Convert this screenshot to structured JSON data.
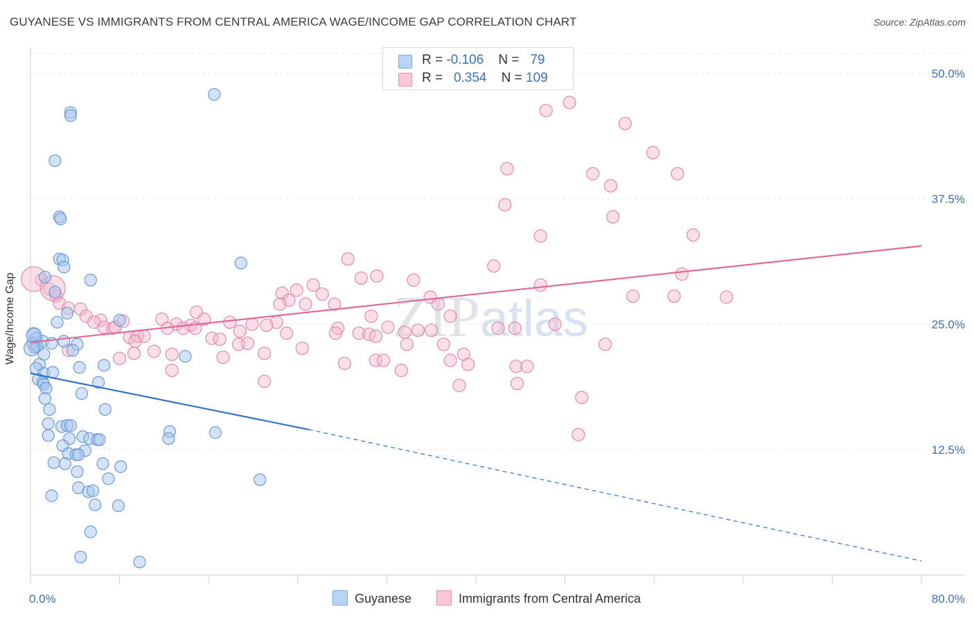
{
  "title": "GUYANESE VS IMMIGRANTS FROM CENTRAL AMERICA WAGE/INCOME GAP CORRELATION CHART",
  "source": "Source: ZipAtlas.com",
  "watermark": "ZIPatlas",
  "legend": {
    "series1": {
      "r_label": "R =",
      "r_value": "-0.106",
      "n_label": "N =",
      "n_value": "79"
    },
    "series2": {
      "r_label": "R =",
      "r_value": "0.354",
      "n_label": "N =",
      "n_value": "109"
    }
  },
  "colors": {
    "guyanese_fill": "#a8c6f0",
    "guyanese_stroke": "#6a9bd8",
    "guyanese_line": "#2f6fd0",
    "central_fill": "#f5b8cb",
    "central_stroke": "#e58aa8",
    "central_line": "#e06a95",
    "axis_text": "#3a6fc4",
    "grid": "#e4e4e4"
  },
  "chart_data": {
    "type": "scatter",
    "title": "GUYANESE VS IMMIGRANTS FROM CENTRAL AMERICA WAGE/INCOME GAP CORRELATION CHART",
    "xlabel": "",
    "ylabel": "Wage/Income Gap",
    "xlim": [
      0,
      80
    ],
    "ylim": [
      0,
      52
    ],
    "x_tick_labels": [
      "0.0%",
      "80.0%"
    ],
    "y_ticks": [
      12.5,
      25.0,
      37.5,
      50.0
    ],
    "y_tick_labels": [
      "12.5%",
      "25.0%",
      "37.5%",
      "50.0%"
    ],
    "grid": true,
    "legend_position": "top-center",
    "series": [
      {
        "name": "Guyanese",
        "r": -0.106,
        "n": 79,
        "trend": {
          "x": [
            0,
            25,
            80
          ],
          "y": [
            20.1,
            14.5,
            1.4
          ],
          "solid_to": 25
        },
        "points": [
          [
            16.5,
            47.9
          ],
          [
            3.6,
            46.1
          ],
          [
            3.6,
            45.8
          ],
          [
            2.2,
            41.3
          ],
          [
            2.6,
            35.7
          ],
          [
            2.7,
            35.5
          ],
          [
            2.6,
            31.5
          ],
          [
            2.9,
            31.4
          ],
          [
            3.0,
            30.7
          ],
          [
            18.9,
            31.1
          ],
          [
            1.3,
            29.7
          ],
          [
            5.4,
            29.4
          ],
          [
            2.2,
            28.2
          ],
          [
            3.3,
            26.1
          ],
          [
            8.0,
            25.4
          ],
          [
            2.4,
            25.2
          ],
          [
            0.3,
            24.0
          ],
          [
            0.5,
            23.6
          ],
          [
            1.1,
            23.3
          ],
          [
            0.2,
            23.1
          ],
          [
            0.4,
            22.7
          ],
          [
            0.6,
            22.8
          ],
          [
            1.9,
            23.1
          ],
          [
            3.0,
            23.3
          ],
          [
            4.2,
            23.0
          ],
          [
            3.8,
            22.4
          ],
          [
            1.2,
            22.0
          ],
          [
            13.9,
            21.8
          ],
          [
            0.8,
            21.0
          ],
          [
            6.6,
            20.9
          ],
          [
            4.4,
            20.7
          ],
          [
            0.5,
            20.6
          ],
          [
            1.2,
            20.1
          ],
          [
            2.0,
            20.2
          ],
          [
            0.7,
            19.5
          ],
          [
            1.1,
            19.2
          ],
          [
            1.2,
            19.0
          ],
          [
            6.1,
            19.2
          ],
          [
            1.4,
            18.6
          ],
          [
            4.6,
            18.1
          ],
          [
            1.3,
            17.6
          ],
          [
            6.7,
            16.5
          ],
          [
            1.7,
            16.5
          ],
          [
            1.6,
            15.1
          ],
          [
            2.8,
            14.8
          ],
          [
            3.3,
            14.9
          ],
          [
            3.6,
            14.9
          ],
          [
            12.5,
            14.3
          ],
          [
            16.6,
            14.2
          ],
          [
            1.6,
            13.9
          ],
          [
            4.7,
            13.8
          ],
          [
            3.5,
            13.6
          ],
          [
            5.3,
            13.6
          ],
          [
            6.0,
            13.5
          ],
          [
            12.4,
            13.6
          ],
          [
            6.2,
            13.5
          ],
          [
            2.9,
            12.9
          ],
          [
            4.9,
            12.4
          ],
          [
            3.4,
            12.1
          ],
          [
            4.1,
            12.0
          ],
          [
            4.3,
            12.0
          ],
          [
            6.5,
            11.1
          ],
          [
            2.1,
            11.2
          ],
          [
            3.1,
            11.1
          ],
          [
            8.1,
            10.8
          ],
          [
            4.2,
            10.3
          ],
          [
            20.6,
            9.5
          ],
          [
            7.0,
            9.6
          ],
          [
            4.3,
            8.7
          ],
          [
            5.2,
            8.3
          ],
          [
            5.6,
            8.4
          ],
          [
            1.9,
            7.9
          ],
          [
            5.8,
            7.0
          ],
          [
            7.9,
            6.9
          ],
          [
            5.4,
            4.3
          ],
          [
            4.5,
            1.8
          ],
          [
            9.8,
            1.3
          ],
          [
            0.1,
            22.6
          ],
          [
            0.3,
            23.9
          ]
        ]
      },
      {
        "name": "Immigrants from Central America",
        "r": 0.354,
        "n": 109,
        "trend": {
          "x": [
            0,
            80
          ],
          "y": [
            23.2,
            32.8
          ]
        },
        "points": [
          [
            48.4,
            47.1
          ],
          [
            46.3,
            46.3
          ],
          [
            53.4,
            45.0
          ],
          [
            55.9,
            42.1
          ],
          [
            42.8,
            40.5
          ],
          [
            50.5,
            40.0
          ],
          [
            58.1,
            40.0
          ],
          [
            52.1,
            38.8
          ],
          [
            42.6,
            36.9
          ],
          [
            52.3,
            35.7
          ],
          [
            45.8,
            33.8
          ],
          [
            59.5,
            33.9
          ],
          [
            28.5,
            31.5
          ],
          [
            41.6,
            30.8
          ],
          [
            29.7,
            29.6
          ],
          [
            31.1,
            29.8
          ],
          [
            34.4,
            29.4
          ],
          [
            58.5,
            30.0
          ],
          [
            45.8,
            28.9
          ],
          [
            25.4,
            28.9
          ],
          [
            23.9,
            28.4
          ],
          [
            22.6,
            28.1
          ],
          [
            26.2,
            28.0
          ],
          [
            54.1,
            27.8
          ],
          [
            57.8,
            27.8
          ],
          [
            62.5,
            27.7
          ],
          [
            35.9,
            27.7
          ],
          [
            23.2,
            27.4
          ],
          [
            24.7,
            27.0
          ],
          [
            22.4,
            27.0
          ],
          [
            36.6,
            27.0
          ],
          [
            27.3,
            27.0
          ],
          [
            1.0,
            29.4
          ],
          [
            1.7,
            28.5
          ],
          [
            2.3,
            27.8
          ],
          [
            2.6,
            27.1
          ],
          [
            3.4,
            26.6
          ],
          [
            4.5,
            26.5
          ],
          [
            5.0,
            25.8
          ],
          [
            6.3,
            25.4
          ],
          [
            5.7,
            25.2
          ],
          [
            30.6,
            25.8
          ],
          [
            37.7,
            25.8
          ],
          [
            14.9,
            26.2
          ],
          [
            11.8,
            25.5
          ],
          [
            15.6,
            25.5
          ],
          [
            17.9,
            25.2
          ],
          [
            19.9,
            25.0
          ],
          [
            22.1,
            25.2
          ],
          [
            27.6,
            24.6
          ],
          [
            21.2,
            24.9
          ],
          [
            13.1,
            25.0
          ],
          [
            14.4,
            24.9
          ],
          [
            8.3,
            25.3
          ],
          [
            6.6,
            24.7
          ],
          [
            7.4,
            24.6
          ],
          [
            7.6,
            24.7
          ],
          [
            12.3,
            24.6
          ],
          [
            13.7,
            24.6
          ],
          [
            14.8,
            24.6
          ],
          [
            18.8,
            24.3
          ],
          [
            47.1,
            25.0
          ],
          [
            42.0,
            24.6
          ],
          [
            43.5,
            24.6
          ],
          [
            32.1,
            24.7
          ],
          [
            34.8,
            24.4
          ],
          [
            36.0,
            24.4
          ],
          [
            33.6,
            24.2
          ],
          [
            29.5,
            24.1
          ],
          [
            30.4,
            24.0
          ],
          [
            27.4,
            24.1
          ],
          [
            23.0,
            24.1
          ],
          [
            31.0,
            23.8
          ],
          [
            8.9,
            23.7
          ],
          [
            9.6,
            23.8
          ],
          [
            10.2,
            23.8
          ],
          [
            16.3,
            23.6
          ],
          [
            17.0,
            23.5
          ],
          [
            9.4,
            23.3
          ],
          [
            18.7,
            23.0
          ],
          [
            19.5,
            23.1
          ],
          [
            33.8,
            23.0
          ],
          [
            37.1,
            23.0
          ],
          [
            51.6,
            23.0
          ],
          [
            24.4,
            22.6
          ],
          [
            11.1,
            22.3
          ],
          [
            9.3,
            22.1
          ],
          [
            12.7,
            22.0
          ],
          [
            21.0,
            22.1
          ],
          [
            38.9,
            22.0
          ],
          [
            3.4,
            22.4
          ],
          [
            8.0,
            21.6
          ],
          [
            17.3,
            21.7
          ],
          [
            31.0,
            21.4
          ],
          [
            31.7,
            21.4
          ],
          [
            37.7,
            21.4
          ],
          [
            28.2,
            21.1
          ],
          [
            39.3,
            21.0
          ],
          [
            43.6,
            20.8
          ],
          [
            44.6,
            20.8
          ],
          [
            33.3,
            20.4
          ],
          [
            12.7,
            20.4
          ],
          [
            21.0,
            19.3
          ],
          [
            38.5,
            18.9
          ],
          [
            43.7,
            19.1
          ],
          [
            49.5,
            17.7
          ],
          [
            49.2,
            14.0
          ],
          [
            0.3,
            29.5
          ],
          [
            2.0,
            28.6
          ]
        ]
      }
    ]
  },
  "bottom_legend": {
    "item1": "Guyanese",
    "item2": "Immigrants from Central America"
  }
}
